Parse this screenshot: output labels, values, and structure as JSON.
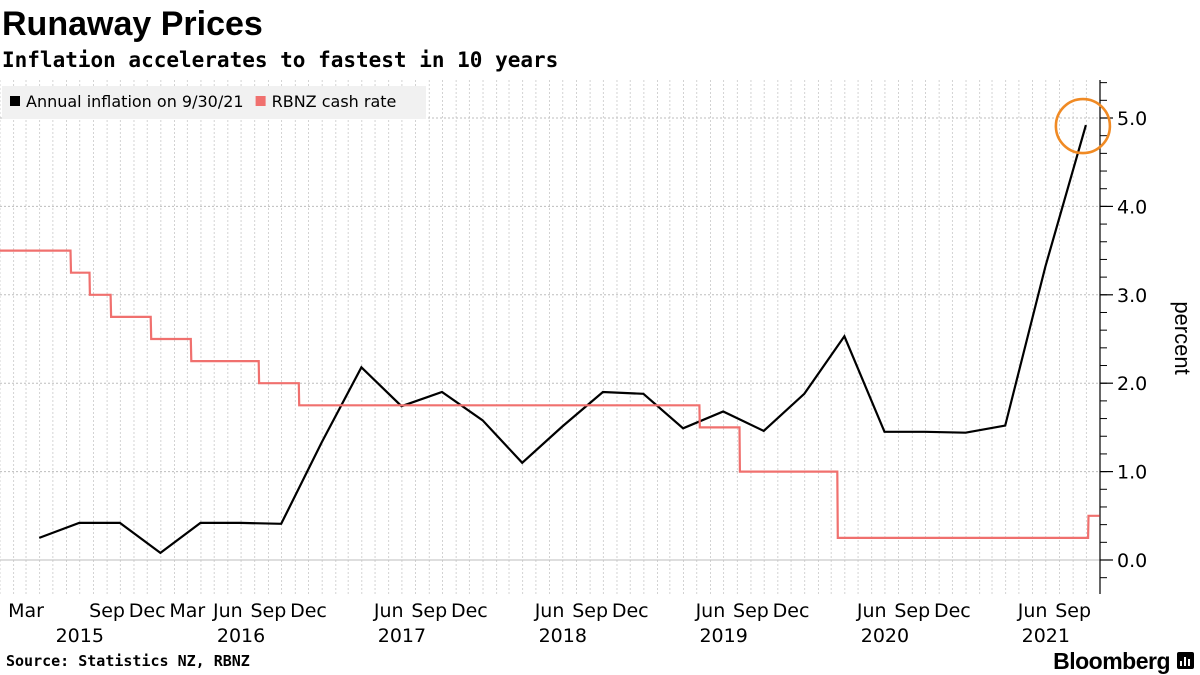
{
  "header": {
    "title": "Runaway Prices",
    "subtitle": "Inflation accelerates to fastest in 10 years"
  },
  "footer": {
    "source": "Source: Statistics NZ, RBNZ",
    "brand": "Bloomberg"
  },
  "colors": {
    "inflation": "#000000",
    "cash_rate": "#f0706e",
    "highlight_circle": "#f08a24",
    "grid": "#bdbdbd"
  },
  "chart_data": {
    "type": "line",
    "ylabel": "percent",
    "ylim": [
      -0.4,
      5.4
    ],
    "yticks": [
      0,
      1,
      2,
      3,
      4,
      5
    ],
    "ytick_labels": [
      "0.0",
      "1.0",
      "2.0",
      "3.0",
      "4.0",
      "5.0"
    ],
    "grid": true,
    "legend_position": "top-left",
    "y_axis_side": "right",
    "x_axis": {
      "type": "date",
      "start": "2015-01-01",
      "end": "2021-11-01",
      "month_labels": [
        {
          "date": "2015-03-01",
          "label": "Mar"
        },
        {
          "date": "2015-09-01",
          "label": "Sep"
        },
        {
          "date": "2015-12-01",
          "label": "Dec"
        },
        {
          "date": "2016-03-01",
          "label": "Mar"
        },
        {
          "date": "2016-06-01",
          "label": "Jun"
        },
        {
          "date": "2016-09-01",
          "label": "Sep"
        },
        {
          "date": "2016-12-01",
          "label": "Dec"
        },
        {
          "date": "2017-06-01",
          "label": "Jun"
        },
        {
          "date": "2017-09-01",
          "label": "Sep"
        },
        {
          "date": "2017-12-01",
          "label": "Dec"
        },
        {
          "date": "2018-06-01",
          "label": "Jun"
        },
        {
          "date": "2018-09-01",
          "label": "Sep"
        },
        {
          "date": "2018-12-01",
          "label": "Dec"
        },
        {
          "date": "2019-06-01",
          "label": "Jun"
        },
        {
          "date": "2019-09-01",
          "label": "Sep"
        },
        {
          "date": "2019-12-01",
          "label": "Dec"
        },
        {
          "date": "2020-06-01",
          "label": "Jun"
        },
        {
          "date": "2020-09-01",
          "label": "Sep"
        },
        {
          "date": "2020-12-01",
          "label": "Dec"
        },
        {
          "date": "2021-06-01",
          "label": "Jun"
        },
        {
          "date": "2021-09-01",
          "label": "Sep"
        }
      ],
      "year_labels": [
        {
          "date": "2015-07-01",
          "label": "2015"
        },
        {
          "date": "2016-07-01",
          "label": "2016"
        },
        {
          "date": "2017-07-01",
          "label": "2017"
        },
        {
          "date": "2018-07-01",
          "label": "2018"
        },
        {
          "date": "2019-07-01",
          "label": "2019"
        },
        {
          "date": "2020-07-01",
          "label": "2020"
        },
        {
          "date": "2021-07-01",
          "label": "2021"
        }
      ]
    },
    "series": [
      {
        "name": "Annual inflation on 9/30/21",
        "color": "#000000",
        "points": [
          [
            "2015-03-31",
            0.25
          ],
          [
            "2015-06-30",
            0.42
          ],
          [
            "2015-09-30",
            0.42
          ],
          [
            "2015-12-31",
            0.08
          ],
          [
            "2016-03-31",
            0.42
          ],
          [
            "2016-06-30",
            0.42
          ],
          [
            "2016-09-30",
            0.41
          ],
          [
            "2016-12-31",
            1.33
          ],
          [
            "2017-03-31",
            2.18
          ],
          [
            "2017-06-30",
            1.74
          ],
          [
            "2017-09-30",
            1.9
          ],
          [
            "2017-12-31",
            1.58
          ],
          [
            "2018-03-31",
            1.1
          ],
          [
            "2018-06-30",
            1.51
          ],
          [
            "2018-09-30",
            1.9
          ],
          [
            "2018-12-31",
            1.88
          ],
          [
            "2019-03-31",
            1.49
          ],
          [
            "2019-06-30",
            1.68
          ],
          [
            "2019-09-30",
            1.46
          ],
          [
            "2019-12-31",
            1.88
          ],
          [
            "2020-03-31",
            2.53
          ],
          [
            "2020-06-30",
            1.45
          ],
          [
            "2020-09-30",
            1.45
          ],
          [
            "2020-12-31",
            1.44
          ],
          [
            "2021-03-31",
            1.52
          ],
          [
            "2021-06-30",
            3.32
          ],
          [
            "2021-09-30",
            4.92
          ]
        ],
        "highlighted_point": [
          "2021-09-30",
          4.92
        ]
      },
      {
        "name": "RBNZ cash rate",
        "color": "#f0706e",
        "points": [
          [
            "2015-01-01",
            3.5
          ],
          [
            "2015-06-10",
            3.5
          ],
          [
            "2015-06-11",
            3.25
          ],
          [
            "2015-07-23",
            3.25
          ],
          [
            "2015-07-24",
            3.0
          ],
          [
            "2015-09-09",
            3.0
          ],
          [
            "2015-09-10",
            2.75
          ],
          [
            "2015-12-09",
            2.75
          ],
          [
            "2015-12-10",
            2.5
          ],
          [
            "2016-03-09",
            2.5
          ],
          [
            "2016-03-10",
            2.25
          ],
          [
            "2016-08-10",
            2.25
          ],
          [
            "2016-08-11",
            2.0
          ],
          [
            "2016-11-09",
            2.0
          ],
          [
            "2016-11-10",
            1.75
          ],
          [
            "2019-05-07",
            1.75
          ],
          [
            "2019-05-08",
            1.5
          ],
          [
            "2019-08-06",
            1.5
          ],
          [
            "2019-08-07",
            1.0
          ],
          [
            "2020-03-15",
            1.0
          ],
          [
            "2020-03-16",
            0.25
          ],
          [
            "2021-10-05",
            0.25
          ],
          [
            "2021-10-06",
            0.5
          ],
          [
            "2021-10-31",
            0.5
          ]
        ]
      }
    ]
  }
}
